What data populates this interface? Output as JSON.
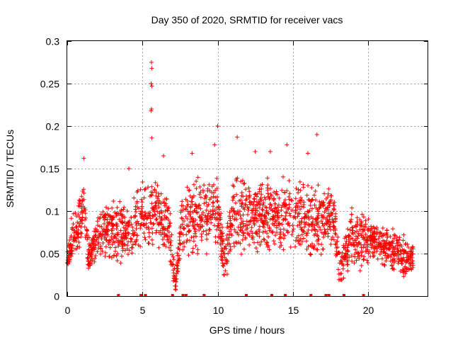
{
  "chart_data": {
    "type": "scatter",
    "title": "Day 350 of 2020, SRMTID for receiver vacs",
    "xlabel": "GPS time / hours",
    "ylabel": "SRMTID / TECUs",
    "xlim": [
      0,
      24
    ],
    "ylim": [
      0,
      0.3
    ],
    "x_ticks": [
      0,
      5,
      10,
      15,
      20
    ],
    "x_tick_labels": [
      "0",
      "5",
      "10",
      "15",
      "20"
    ],
    "y_ticks": [
      0,
      0.05,
      0.1,
      0.15,
      0.2,
      0.25,
      0.3
    ],
    "y_tick_labels": [
      "0",
      "0.05",
      "0.1",
      "0.15",
      "0.2",
      "0.25",
      "0.3"
    ],
    "grid": true,
    "marker": "+",
    "marker_color": "#ff0000",
    "series": [
      {
        "name": "SRMTID",
        "profile": [
          {
            "t": 0.0,
            "lo": 0.03,
            "hi": 0.06
          },
          {
            "t": 0.3,
            "lo": 0.04,
            "hi": 0.09
          },
          {
            "t": 0.7,
            "lo": 0.05,
            "hi": 0.11
          },
          {
            "t": 1.1,
            "lo": 0.07,
            "hi": 0.15
          },
          {
            "t": 1.4,
            "lo": 0.03,
            "hi": 0.07
          },
          {
            "t": 2.0,
            "lo": 0.04,
            "hi": 0.1
          },
          {
            "t": 3.0,
            "lo": 0.04,
            "hi": 0.12
          },
          {
            "t": 4.0,
            "lo": 0.03,
            "hi": 0.11
          },
          {
            "t": 5.0,
            "lo": 0.05,
            "hi": 0.14
          },
          {
            "t": 5.5,
            "lo": 0.06,
            "hi": 0.13
          },
          {
            "t": 6.0,
            "lo": 0.06,
            "hi": 0.14
          },
          {
            "t": 6.8,
            "lo": 0.04,
            "hi": 0.12
          },
          {
            "t": 7.2,
            "lo": 0.0,
            "hi": 0.03
          },
          {
            "t": 7.6,
            "lo": 0.05,
            "hi": 0.13
          },
          {
            "t": 8.5,
            "lo": 0.04,
            "hi": 0.14
          },
          {
            "t": 9.5,
            "lo": 0.05,
            "hi": 0.15
          },
          {
            "t": 10.0,
            "lo": 0.05,
            "hi": 0.14
          },
          {
            "t": 10.5,
            "lo": 0.01,
            "hi": 0.06
          },
          {
            "t": 11.0,
            "lo": 0.05,
            "hi": 0.15
          },
          {
            "t": 12.0,
            "lo": 0.05,
            "hi": 0.14
          },
          {
            "t": 13.0,
            "lo": 0.05,
            "hi": 0.14
          },
          {
            "t": 14.0,
            "lo": 0.05,
            "hi": 0.14
          },
          {
            "t": 15.0,
            "lo": 0.05,
            "hi": 0.14
          },
          {
            "t": 16.0,
            "lo": 0.04,
            "hi": 0.14
          },
          {
            "t": 17.0,
            "lo": 0.04,
            "hi": 0.13
          },
          {
            "t": 17.6,
            "lo": 0.06,
            "hi": 0.14
          },
          {
            "t": 18.2,
            "lo": 0.0,
            "hi": 0.05
          },
          {
            "t": 18.8,
            "lo": 0.04,
            "hi": 0.11
          },
          {
            "t": 19.5,
            "lo": 0.03,
            "hi": 0.1
          },
          {
            "t": 20.5,
            "lo": 0.04,
            "hi": 0.09
          },
          {
            "t": 21.5,
            "lo": 0.03,
            "hi": 0.08
          },
          {
            "t": 22.5,
            "lo": 0.02,
            "hi": 0.07
          },
          {
            "t": 23.0,
            "lo": 0.03,
            "hi": 0.06
          }
        ],
        "points_per_hour": 90,
        "highlights": [
          [
            5.6,
            0.275
          ],
          [
            5.62,
            0.268
          ],
          [
            5.58,
            0.25
          ],
          [
            5.63,
            0.247
          ],
          [
            5.6,
            0.22
          ],
          [
            5.57,
            0.218
          ],
          [
            5.62,
            0.186
          ],
          [
            10.0,
            0.2
          ],
          [
            16.6,
            0.19
          ],
          [
            1.1,
            0.162
          ],
          [
            11.3,
            0.187
          ],
          [
            9.8,
            0.178
          ],
          [
            12.5,
            0.17
          ],
          [
            13.5,
            0.17
          ],
          [
            16.0,
            0.168
          ],
          [
            6.4,
            0.165
          ],
          [
            8.3,
            0.168
          ],
          [
            4.1,
            0.15
          ],
          [
            14.6,
            0.178
          ]
        ],
        "zero_points": [
          3.4,
          4.9,
          5.2,
          7.0,
          7.7,
          7.9,
          9.1,
          11.9,
          13.6,
          14.5,
          16.2,
          17.2,
          17.4,
          18.4,
          19.7
        ]
      }
    ]
  }
}
